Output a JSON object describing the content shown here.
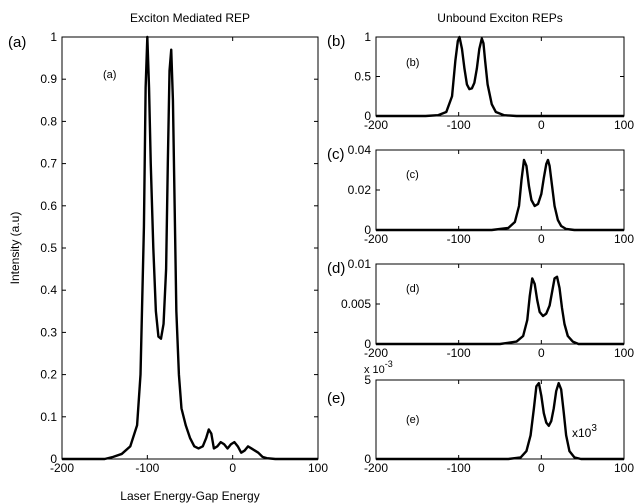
{
  "chart_data": [
    {
      "id": "a",
      "type": "line",
      "title": "Exciton Mediated REP",
      "panel_label": "(a)",
      "inner_label": "(a)",
      "xlabel": "Laser Energy-Gap Energy",
      "ylabel": "Intensity (a.u)",
      "xlim": [
        -200,
        100
      ],
      "ylim": [
        0,
        1
      ],
      "xticks": [
        "-200",
        "-100",
        "0",
        "100"
      ],
      "yticks": [
        "0",
        "0.1",
        "0.2",
        "0.3",
        "0.4",
        "0.5",
        "0.6",
        "0.7",
        "0.8",
        "0.9",
        "1"
      ],
      "x": [
        -200,
        -150,
        -140,
        -130,
        -120,
        -112,
        -108,
        -104,
        -102,
        -100,
        -98,
        -96,
        -93,
        -90,
        -87,
        -84,
        -81,
        -78,
        -76,
        -74,
        -72,
        -70,
        -68,
        -66,
        -63,
        -60,
        -55,
        -50,
        -45,
        -40,
        -35,
        -31,
        -28,
        -25,
        -22,
        -18,
        -14,
        -10,
        -6,
        -2,
        2,
        6,
        10,
        14,
        18,
        22,
        26,
        30,
        35,
        40,
        50,
        60,
        70,
        100
      ],
      "y": [
        0,
        0,
        0.005,
        0.012,
        0.03,
        0.08,
        0.2,
        0.55,
        0.88,
        1.0,
        0.88,
        0.7,
        0.5,
        0.35,
        0.29,
        0.285,
        0.32,
        0.45,
        0.7,
        0.92,
        0.97,
        0.85,
        0.6,
        0.35,
        0.2,
        0.12,
        0.08,
        0.05,
        0.03,
        0.025,
        0.03,
        0.05,
        0.07,
        0.06,
        0.025,
        0.03,
        0.04,
        0.035,
        0.025,
        0.035,
        0.04,
        0.03,
        0.015,
        0.02,
        0.03,
        0.025,
        0.02,
        0.015,
        0.005,
        0.002,
        0,
        0,
        0,
        0
      ]
    },
    {
      "id": "b",
      "type": "line",
      "title": "Unbound Exciton REPs",
      "panel_label": "(b)",
      "inner_label": "(b)",
      "xlim": [
        -200,
        100
      ],
      "ylim": [
        0,
        1
      ],
      "xticks": [
        "-200",
        "-100",
        "0",
        "100"
      ],
      "yticks": [
        "0",
        "0.5",
        "1"
      ],
      "x": [
        -200,
        -140,
        -125,
        -115,
        -108,
        -104,
        -101,
        -99,
        -96,
        -93,
        -90,
        -87,
        -84,
        -81,
        -78,
        -75,
        -72,
        -70,
        -68,
        -65,
        -60,
        -55,
        -45,
        -30,
        100
      ],
      "y": [
        0,
        0,
        0.01,
        0.05,
        0.25,
        0.7,
        0.95,
        1.0,
        0.85,
        0.6,
        0.4,
        0.34,
        0.35,
        0.42,
        0.6,
        0.85,
        0.98,
        0.92,
        0.7,
        0.4,
        0.15,
        0.05,
        0.01,
        0,
        0
      ]
    },
    {
      "id": "c",
      "type": "line",
      "panel_label": "(c)",
      "inner_label": "(c)",
      "xlim": [
        -200,
        100
      ],
      "ylim": [
        0,
        0.04
      ],
      "xticks": [
        "-200",
        "-100",
        "0",
        "100"
      ],
      "yticks": [
        "0",
        "0.02",
        "0.04"
      ],
      "x": [
        -200,
        -60,
        -40,
        -32,
        -27,
        -24,
        -21,
        -18,
        -15,
        -12,
        -8,
        -4,
        0,
        3,
        6,
        8,
        10,
        13,
        16,
        20,
        24,
        30,
        40,
        60,
        100
      ],
      "y": [
        0,
        0,
        0.001,
        0.004,
        0.012,
        0.025,
        0.035,
        0.032,
        0.022,
        0.015,
        0.012,
        0.013,
        0.018,
        0.026,
        0.033,
        0.035,
        0.032,
        0.022,
        0.012,
        0.005,
        0.002,
        0.0005,
        0,
        0,
        0
      ]
    },
    {
      "id": "d",
      "type": "line",
      "panel_label": "(d)",
      "inner_label": "(d)",
      "xlim": [
        -200,
        100
      ],
      "ylim": [
        0,
        0.01
      ],
      "xticks": [
        "-200",
        "-100",
        "0",
        "100"
      ],
      "yticks": [
        "0",
        "0.005",
        "0.01"
      ],
      "x": [
        -200,
        -50,
        -30,
        -22,
        -17,
        -14,
        -11,
        -8,
        -5,
        -2,
        2,
        6,
        10,
        13,
        16,
        19,
        22,
        25,
        28,
        32,
        38,
        45,
        60,
        100
      ],
      "y": [
        0,
        0,
        0.0003,
        0.001,
        0.003,
        0.006,
        0.0082,
        0.0075,
        0.0055,
        0.004,
        0.0035,
        0.0038,
        0.0048,
        0.0065,
        0.0082,
        0.0084,
        0.007,
        0.0045,
        0.0025,
        0.001,
        0.0003,
        0,
        0,
        0
      ]
    },
    {
      "id": "e",
      "type": "line",
      "panel_label": "(e)",
      "inner_label": "(e)",
      "exponent_label": "x 10",
      "exponent_sup": "-3",
      "annotation": "x10",
      "annotation_sup": "3",
      "xlim": [
        -200,
        100
      ],
      "ylim": [
        0,
        5
      ],
      "xticks": [
        "-200",
        "-100",
        "0",
        "100"
      ],
      "yticks": [
        "0",
        "5"
      ],
      "x": [
        -200,
        -40,
        -25,
        -18,
        -13,
        -9,
        -6,
        -3,
        0,
        3,
        6,
        9,
        12,
        15,
        18,
        21,
        24,
        27,
        30,
        34,
        40,
        48,
        60,
        100
      ],
      "y": [
        0,
        0,
        0.1,
        0.5,
        1.5,
        3.2,
        4.6,
        4.8,
        4.0,
        2.9,
        2.3,
        2.1,
        2.4,
        3.2,
        4.3,
        4.8,
        4.4,
        3.0,
        1.5,
        0.5,
        0.1,
        0,
        0,
        0
      ]
    }
  ]
}
